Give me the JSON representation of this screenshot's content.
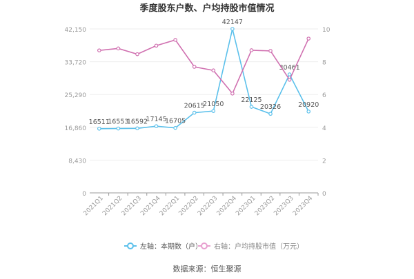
{
  "chart_data": {
    "type": "line",
    "title": "季度股东户数、户均持股市值情况",
    "categories": [
      "2021Q1",
      "2021Q2",
      "2021Q3",
      "2021Q4",
      "2022Q1",
      "2022Q2",
      "2022Q3",
      "2022Q4",
      "2023Q1",
      "2023Q2",
      "2023Q3",
      "2023Q4"
    ],
    "left_axis": {
      "ticks": [
        "0",
        "8,430",
        "16,860",
        "25,290",
        "33,720",
        "42,150"
      ],
      "ylim": [
        0,
        42150
      ]
    },
    "right_axis": {
      "ticks": [
        "0",
        "2",
        "4",
        "6",
        "8",
        "10"
      ],
      "ylim": [
        0,
        10
      ]
    },
    "grid": true,
    "legend_position": "bottom",
    "series": [
      {
        "name": "左轴：本期数（户）",
        "axis": "left",
        "color": "#5bc0eb",
        "values": [
          16511,
          16553,
          16592,
          17145,
          16705,
          20615,
          21050,
          42147,
          22125,
          20326,
          30461,
          20920
        ],
        "labels": [
          "16511",
          "16553",
          "16592",
          "17145",
          "16705",
          "20615",
          "21050",
          "42147",
          "22125",
          "20326",
          "30461",
          "20920"
        ]
      },
      {
        "name": "右轴：户均持股市值（万元）",
        "axis": "right",
        "color": "#d070b0",
        "values": [
          8.69,
          8.81,
          8.46,
          8.98,
          9.33,
          7.69,
          7.47,
          6.06,
          8.7,
          8.66,
          6.9,
          9.41
        ]
      }
    ],
    "source": "数据来源：恒生聚源"
  }
}
